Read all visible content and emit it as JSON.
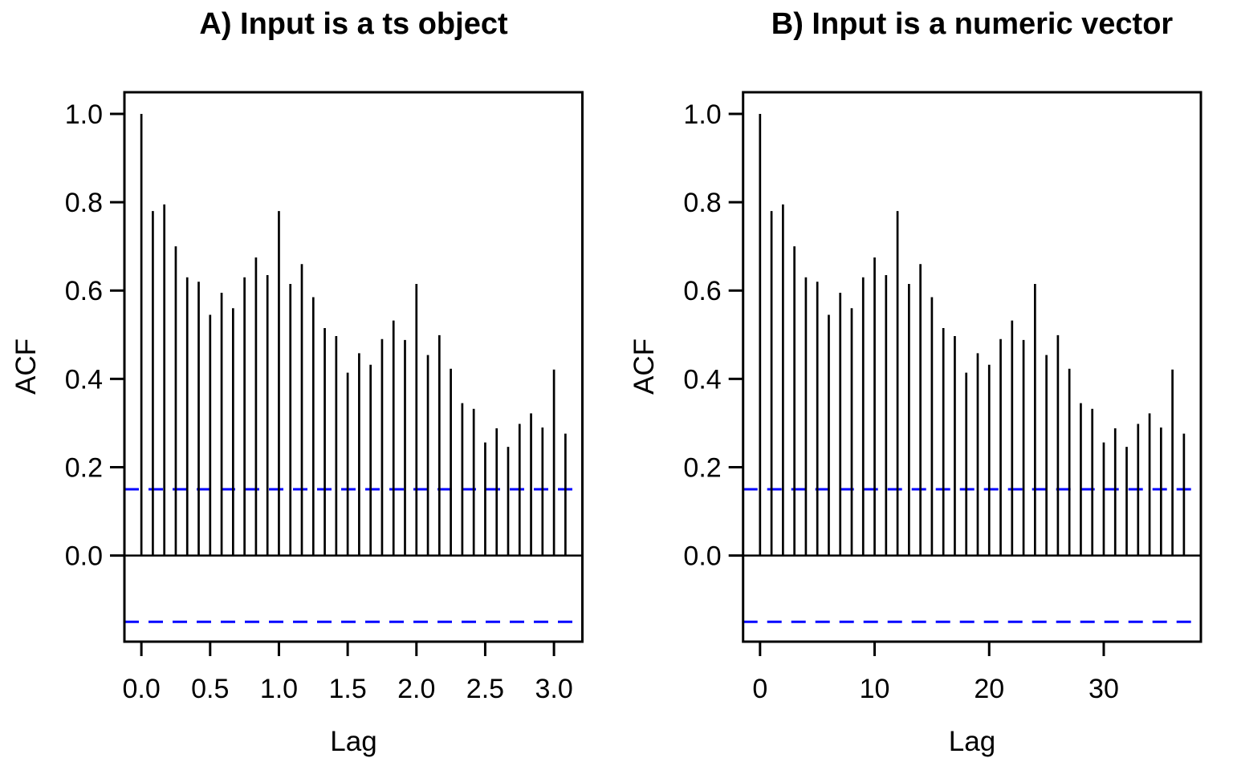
{
  "page": {
    "background": "#ffffff"
  },
  "chart_data": [
    {
      "type": "bar",
      "subtype": "acf_stem_plot",
      "title": "A) Input is a ts object",
      "xlabel": "Lag",
      "ylabel": "ACF",
      "x_axis_unit": "years",
      "n_lags": 38,
      "lag_step_x": 0.0833333,
      "xlim": [
        -0.1233,
        3.2066
      ],
      "ylim": [
        -0.195,
        1.049
      ],
      "grid": false,
      "legend": null,
      "x_ticks": {
        "positions": [
          0.0,
          0.5,
          1.0,
          1.5,
          2.0,
          2.5,
          3.0
        ],
        "labels": [
          "0.0",
          "0.5",
          "1.0",
          "1.5",
          "2.0",
          "2.5",
          "3.0"
        ]
      },
      "y_ticks": {
        "positions": [
          0.0,
          0.2,
          0.4,
          0.6,
          0.8,
          1.0
        ],
        "labels": [
          "0.0",
          "0.2",
          "0.4",
          "0.6",
          "0.8",
          "1.0"
        ]
      },
      "confidence_lines": [
        0.15,
        -0.15
      ],
      "zero_line": 0,
      "values": [
        1.0,
        0.78,
        0.795,
        0.7,
        0.63,
        0.62,
        0.545,
        0.595,
        0.56,
        0.63,
        0.675,
        0.635,
        0.78,
        0.615,
        0.66,
        0.585,
        0.515,
        0.497,
        0.414,
        0.458,
        0.432,
        0.49,
        0.532,
        0.488,
        0.615,
        0.454,
        0.499,
        0.423,
        0.345,
        0.332,
        0.256,
        0.288,
        0.246,
        0.298,
        0.322,
        0.29,
        0.421,
        0.276
      ],
      "colors": {
        "stem": "#000000",
        "frame": "#000000",
        "confidence": "#0000FF"
      }
    },
    {
      "type": "bar",
      "subtype": "acf_stem_plot",
      "title": "B) Input is a numeric vector",
      "xlabel": "Lag",
      "ylabel": "ACF",
      "x_axis_unit": "lag_index",
      "n_lags": 38,
      "lag_step_x": 1,
      "xlim": [
        -1.48,
        38.48
      ],
      "ylim": [
        -0.195,
        1.049
      ],
      "grid": false,
      "legend": null,
      "x_ticks": {
        "positions": [
          0,
          10,
          20,
          30
        ],
        "labels": [
          "0",
          "10",
          "20",
          "30"
        ]
      },
      "y_ticks": {
        "positions": [
          0.0,
          0.2,
          0.4,
          0.6,
          0.8,
          1.0
        ],
        "labels": [
          "0.0",
          "0.2",
          "0.4",
          "0.6",
          "0.8",
          "1.0"
        ]
      },
      "confidence_lines": [
        0.15,
        -0.15
      ],
      "zero_line": 0,
      "values": [
        1.0,
        0.78,
        0.795,
        0.7,
        0.63,
        0.62,
        0.545,
        0.595,
        0.56,
        0.63,
        0.675,
        0.635,
        0.78,
        0.615,
        0.66,
        0.585,
        0.515,
        0.497,
        0.414,
        0.458,
        0.432,
        0.49,
        0.532,
        0.488,
        0.615,
        0.454,
        0.499,
        0.423,
        0.345,
        0.332,
        0.256,
        0.288,
        0.246,
        0.298,
        0.322,
        0.29,
        0.421,
        0.276
      ],
      "colors": {
        "stem": "#000000",
        "frame": "#000000",
        "confidence": "#0000FF"
      }
    }
  ]
}
